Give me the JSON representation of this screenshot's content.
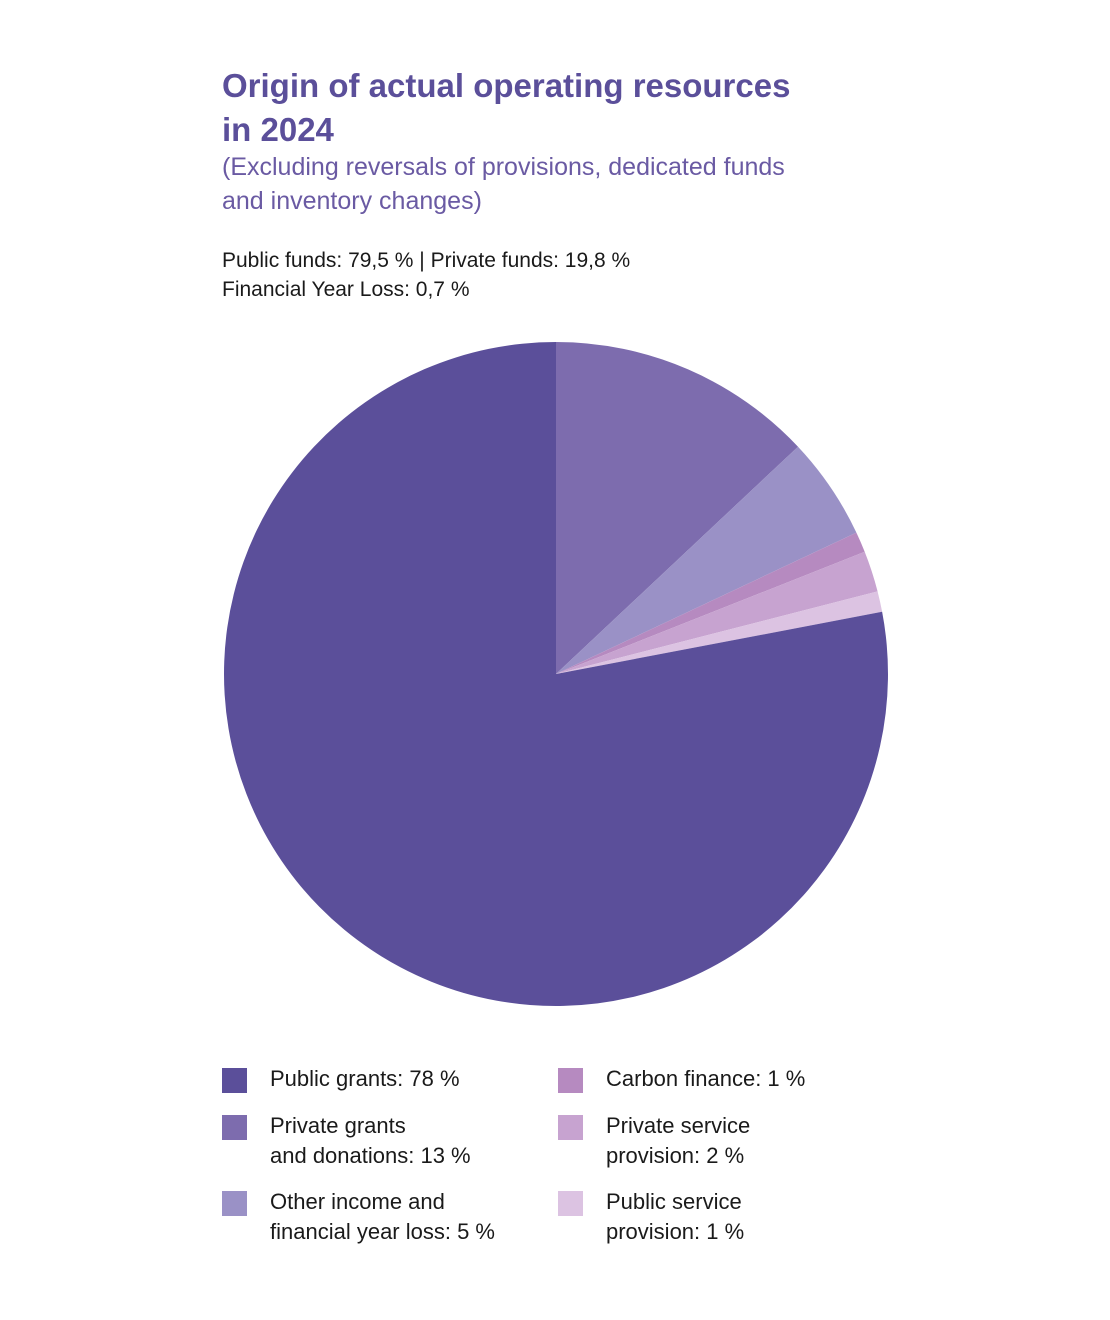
{
  "header": {
    "title_lines": [
      "Origin of actual operating resources",
      "in 2024"
    ],
    "subtitle_lines": [
      "(Excluding reversals of provisions, dedicated funds",
      "and inventory changes)"
    ],
    "summary_lines": [
      "Public funds: 79,5 % | Private funds: 19,8 %",
      "Financial Year Loss: 0,7 %"
    ]
  },
  "legend": {
    "items": [
      {
        "lines": [
          "Public grants: 78 %"
        ],
        "color": "#5b4f9a"
      },
      {
        "lines": [
          "Private grants",
          "and donations: 13 %"
        ],
        "color": "#7d6cae"
      },
      {
        "lines": [
          "Other income and",
          "financial year loss: 5 %"
        ],
        "color": "#9a91c6"
      },
      {
        "lines": [
          "Carbon finance: 1 %"
        ],
        "color": "#b68ac0"
      },
      {
        "lines": [
          "Private service",
          "provision: 2 %"
        ],
        "color": "#c7a3d0"
      },
      {
        "lines": [
          "Public service",
          "provision: 1 %"
        ],
        "color": "#dcc3e2"
      }
    ]
  },
  "chart_data": {
    "type": "pie",
    "title": "Origin of actual operating resources in 2024",
    "subtitle": "(Excluding reversals of provisions, dedicated funds and inventory changes)",
    "start": "top, clockwise",
    "slices": [
      {
        "label": "Private grants and donations",
        "value": 13,
        "color": "#7d6cae"
      },
      {
        "label": "Other income and financial year loss",
        "value": 5,
        "color": "#9a91c6"
      },
      {
        "label": "Carbon finance",
        "value": 1,
        "color": "#b68ac0"
      },
      {
        "label": "Private service provision",
        "value": 2,
        "color": "#c7a3d0"
      },
      {
        "label": "Public service provision",
        "value": 1,
        "color": "#dcc3e2"
      },
      {
        "label": "Public grants",
        "value": 78,
        "color": "#5b4f9a"
      }
    ],
    "legend_position": "bottom"
  }
}
